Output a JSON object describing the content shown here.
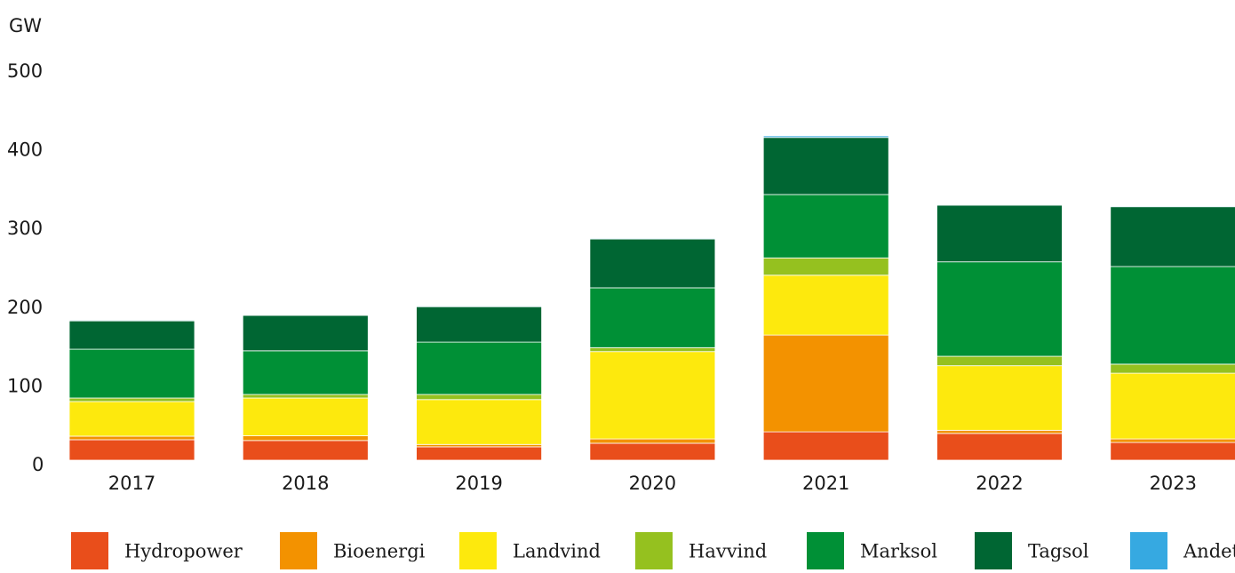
{
  "chart_data": {
    "type": "stacked_bar",
    "y_axis_label": "GW",
    "categories": [
      "2017",
      "2018",
      "2019",
      "2020",
      "2021",
      "2022",
      "2023"
    ],
    "series": [
      {
        "name": "Hydropower",
        "color": "#e94e1b",
        "values": [
          26,
          25,
          17,
          21.5,
          36,
          34,
          22.5
        ]
      },
      {
        "name": "Bioenergi",
        "color": "#f39200",
        "values": [
          4.5,
          6,
          3,
          5.5,
          123,
          4,
          4.5
        ]
      },
      {
        "name": "Landvind",
        "color": "#fde90d",
        "values": [
          44,
          48,
          57,
          111,
          76,
          82,
          83.5
        ]
      },
      {
        "name": "Havvind",
        "color": "#95c11f",
        "values": [
          4.5,
          4.5,
          6.5,
          5,
          22,
          12,
          11.5
        ]
      },
      {
        "name": "Marksol",
        "color": "#009036",
        "values": [
          62,
          55.5,
          66.5,
          76,
          80.5,
          120,
          124
        ]
      },
      {
        "name": "Tagsol",
        "color": "#006633",
        "values": [
          36,
          45,
          45,
          62,
          72.5,
          72,
          76
        ]
      },
      {
        "name": "Andet",
        "color": "#36a9e1",
        "values": [
          1,
          0.5,
          1,
          1,
          2,
          1,
          1
        ]
      }
    ],
    "ylim": [
      0,
      500
    ],
    "yticks": [
      0,
      100,
      200,
      300,
      400,
      500
    ],
    "grid": false,
    "legend": "bottom"
  }
}
